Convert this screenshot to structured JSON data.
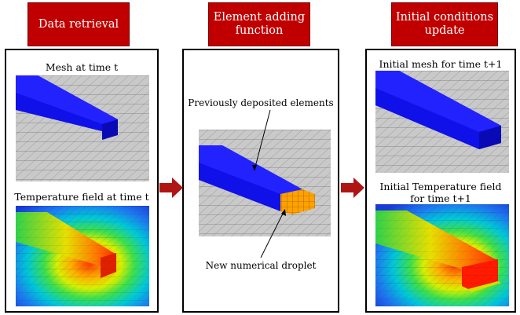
{
  "panels": [
    {
      "header": "Data retrieval",
      "captions": [
        "Mesh at time t",
        "Temperature field at time t"
      ]
    },
    {
      "header_lines": [
        "Element adding",
        "function"
      ],
      "annotations": [
        "Previously deposited elements",
        "New numerical droplet"
      ]
    },
    {
      "header_lines": [
        "Initial conditions",
        "update"
      ],
      "captions": [
        "Initial mesh for time t+1"
      ],
      "caption_lines": [
        "Initial Temperature field",
        "for time t+1"
      ]
    }
  ],
  "colors": {
    "header_bg": "#c00000",
    "arrow": "#b01515",
    "mesh_grey": "#c9c9c9",
    "deposit_blue": "#1010e8",
    "droplet_orange": "#ffa100"
  }
}
